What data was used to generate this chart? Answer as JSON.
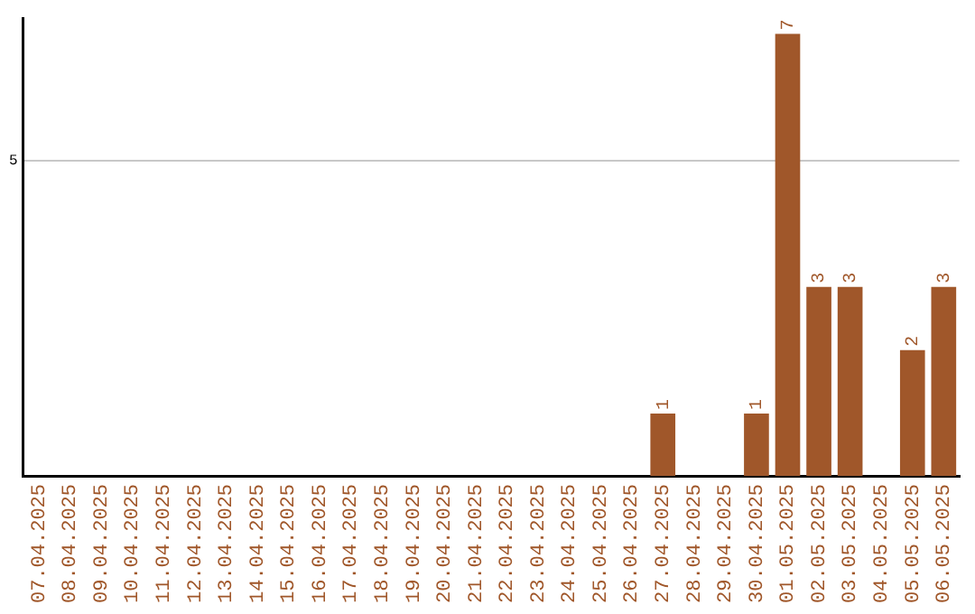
{
  "chart_data": {
    "type": "bar",
    "categories": [
      "07.04.2025",
      "08.04.2025",
      "09.04.2025",
      "10.04.2025",
      "11.04.2025",
      "12.04.2025",
      "13.04.2025",
      "14.04.2025",
      "15.04.2025",
      "16.04.2025",
      "17.04.2025",
      "18.04.2025",
      "19.04.2025",
      "20.04.2025",
      "21.04.2025",
      "22.04.2025",
      "23.04.2025",
      "24.04.2025",
      "25.04.2025",
      "26.04.2025",
      "27.04.2025",
      "28.04.2025",
      "29.04.2025",
      "30.04.2025",
      "01.05.2025",
      "02.05.2025",
      "03.05.2025",
      "04.05.2025",
      "05.05.2025",
      "06.05.2025"
    ],
    "values": [
      null,
      null,
      null,
      null,
      null,
      null,
      null,
      null,
      null,
      null,
      null,
      null,
      null,
      null,
      null,
      null,
      null,
      null,
      null,
      null,
      1,
      null,
      null,
      1,
      7,
      3,
      3,
      null,
      2,
      3
    ],
    "value_labels": [
      null,
      null,
      null,
      null,
      null,
      null,
      null,
      null,
      null,
      null,
      null,
      null,
      null,
      null,
      null,
      null,
      null,
      null,
      null,
      null,
      "1",
      null,
      null,
      "1",
      "7",
      "3",
      "3",
      null,
      "2",
      "3"
    ],
    "color": "#a0572a",
    "ylim": [
      0,
      7.25
    ],
    "yticks": [
      {
        "value": 0,
        "label": null
      },
      5
    ],
    "grid": "y",
    "legend": false
  }
}
